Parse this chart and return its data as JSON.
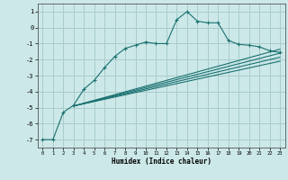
{
  "xlabel": "Humidex (Indice chaleur)",
  "bg_color": "#cce8e8",
  "grid_color": "#aacccc",
  "line_color": "#1a7070",
  "xlim": [
    -0.5,
    23.5
  ],
  "ylim": [
    -7.5,
    1.5
  ],
  "yticks": [
    -7,
    -6,
    -5,
    -4,
    -3,
    -2,
    -1,
    0,
    1
  ],
  "xticks": [
    0,
    1,
    2,
    3,
    4,
    5,
    6,
    7,
    8,
    9,
    10,
    11,
    12,
    13,
    14,
    15,
    16,
    17,
    18,
    19,
    20,
    21,
    22,
    23
  ],
  "series_with_markers": {
    "x": [
      0,
      1,
      2,
      3,
      4,
      5,
      6,
      7,
      8,
      9,
      10,
      11,
      12,
      13,
      14,
      15,
      16,
      17,
      18,
      19,
      20,
      21,
      22,
      23
    ],
    "y": [
      -7.0,
      -7.0,
      -5.3,
      -4.85,
      -3.85,
      -3.3,
      -2.5,
      -1.8,
      -1.3,
      -1.1,
      -0.9,
      -1.0,
      -1.0,
      0.5,
      1.0,
      0.4,
      0.3,
      0.3,
      -0.8,
      -1.05,
      -1.1,
      -1.2,
      -1.45,
      -1.55
    ]
  },
  "series_lines": [
    {
      "x": [
        3,
        23
      ],
      "y": [
        -4.9,
        -1.35
      ]
    },
    {
      "x": [
        3,
        23
      ],
      "y": [
        -4.9,
        -1.6
      ]
    },
    {
      "x": [
        3,
        23
      ],
      "y": [
        -4.9,
        -1.85
      ]
    },
    {
      "x": [
        3,
        23
      ],
      "y": [
        -4.9,
        -2.1
      ]
    }
  ]
}
